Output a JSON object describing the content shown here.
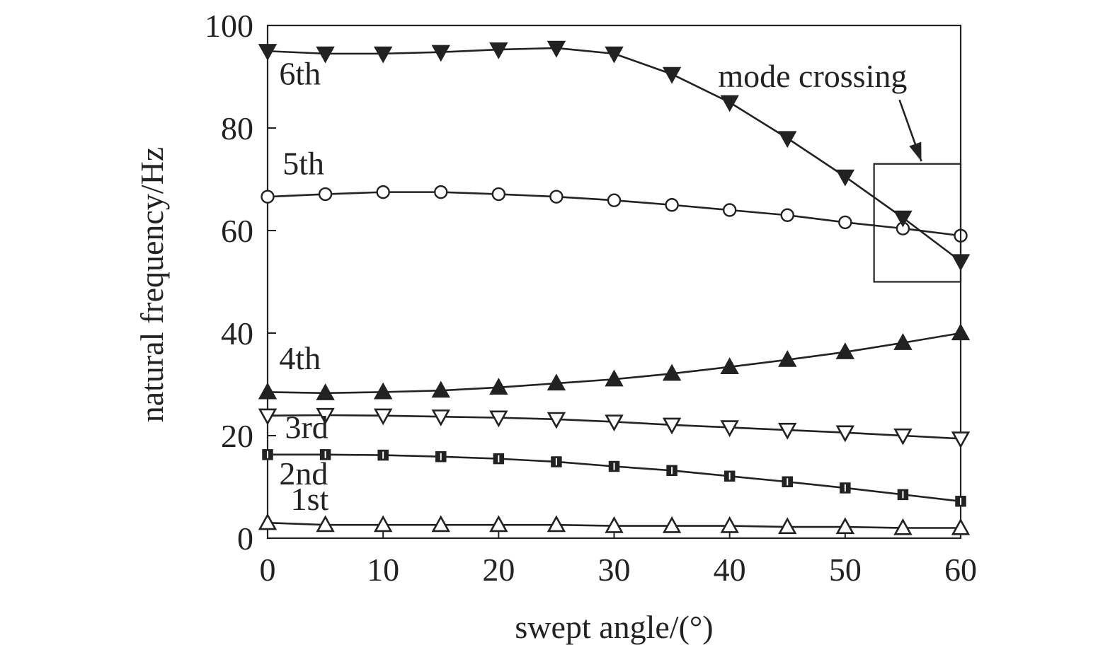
{
  "chart_data": {
    "type": "line",
    "title": "",
    "xlabel": "swept angle/(°)",
    "ylabel": "natural frequency/Hz",
    "xlim": [
      0,
      60
    ],
    "ylim": [
      0,
      100
    ],
    "xticks": [
      0,
      10,
      20,
      30,
      40,
      50,
      60
    ],
    "yticks": [
      0,
      20,
      40,
      60,
      80,
      100
    ],
    "grid": false,
    "x": [
      0,
      5,
      10,
      15,
      20,
      25,
      30,
      35,
      40,
      45,
      50,
      55,
      60
    ],
    "series": [
      {
        "name": "1st",
        "marker": "triangle-up-open",
        "values": [
          3.0,
          2.6,
          2.6,
          2.6,
          2.6,
          2.6,
          2.4,
          2.4,
          2.4,
          2.2,
          2.2,
          2.0,
          2.0
        ],
        "label_at": [
          2,
          5.5
        ]
      },
      {
        "name": "2nd",
        "marker": "square-filled",
        "values": [
          16.3,
          16.3,
          16.2,
          15.9,
          15.5,
          14.9,
          14.0,
          13.2,
          12.1,
          11.0,
          9.8,
          8.5,
          7.2
        ],
        "label_at": [
          1,
          10.5
        ]
      },
      {
        "name": "3rd",
        "marker": "triangle-down-open",
        "values": [
          23.9,
          24.0,
          23.9,
          23.7,
          23.5,
          23.2,
          22.7,
          22.1,
          21.6,
          21.1,
          20.6,
          20.0,
          19.4
        ],
        "label_at": [
          1.5,
          19.5
        ]
      },
      {
        "name": "4th",
        "marker": "triangle-up-filled",
        "values": [
          28.5,
          28.3,
          28.5,
          28.8,
          29.4,
          30.2,
          31.0,
          32.1,
          33.4,
          34.8,
          36.3,
          38.1,
          40.0
        ],
        "label_at": [
          1,
          33
        ]
      },
      {
        "name": "5th",
        "marker": "circle-open",
        "values": [
          66.6,
          67.1,
          67.5,
          67.5,
          67.1,
          66.6,
          65.9,
          65.0,
          64.0,
          63.0,
          61.6,
          60.4,
          59.0
        ],
        "label_at": [
          1.3,
          71
        ]
      },
      {
        "name": "6th",
        "marker": "triangle-down-filled",
        "values": [
          95.0,
          94.5,
          94.5,
          94.8,
          95.3,
          95.6,
          94.5,
          90.5,
          85.0,
          78.0,
          70.5,
          62.5,
          54.0
        ],
        "label_at": [
          1,
          88.5
        ]
      }
    ],
    "annotations": [
      {
        "text": "mode crossing",
        "text_at": [
          39,
          88
        ],
        "box": {
          "x": [
            52.5,
            60
          ],
          "y": [
            50,
            73
          ]
        },
        "arrow_from": [
          54.7,
          85.5
        ],
        "arrow_to": [
          56.6,
          73.5
        ]
      }
    ]
  }
}
